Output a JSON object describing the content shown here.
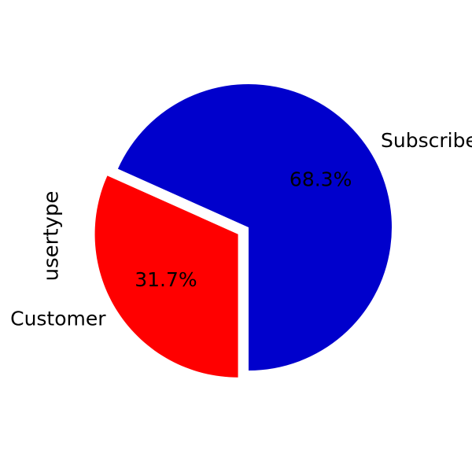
{
  "chart_data": {
    "type": "pie",
    "ylabel": "usertype",
    "categories": [
      "Subscriber",
      "Customer"
    ],
    "values": [
      68.3,
      31.7
    ],
    "percent_labels": [
      "68.3%",
      "31.7%"
    ],
    "colors": [
      "#0000cc",
      "#ff0000"
    ],
    "exploded": [
      "Customer"
    ],
    "legend": false
  }
}
